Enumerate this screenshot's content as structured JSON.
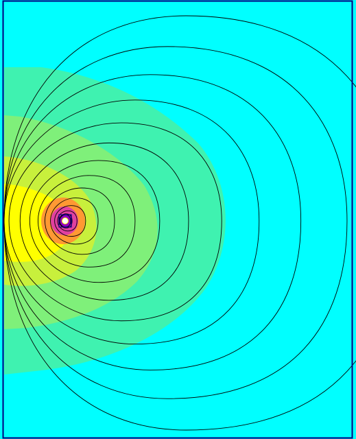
{
  "view": {
    "name": "field-plot-viewport",
    "colors": {
      "background": "#00FFFF",
      "frame": "#000080",
      "contour_line": "#000000",
      "band_outer": "#3FF2B0",
      "band_mid": "#7FF07A",
      "band_inner": "#C8F03C",
      "hot_yellow": "#FFFF00",
      "hot_orange": "#FF9933",
      "hot_magenta": "#E040A0",
      "core_purple": "#9000C0",
      "core_white": "#FFFFFF"
    },
    "contour_count": 14,
    "icons": [
      "field-source-marker-icon"
    ]
  }
}
